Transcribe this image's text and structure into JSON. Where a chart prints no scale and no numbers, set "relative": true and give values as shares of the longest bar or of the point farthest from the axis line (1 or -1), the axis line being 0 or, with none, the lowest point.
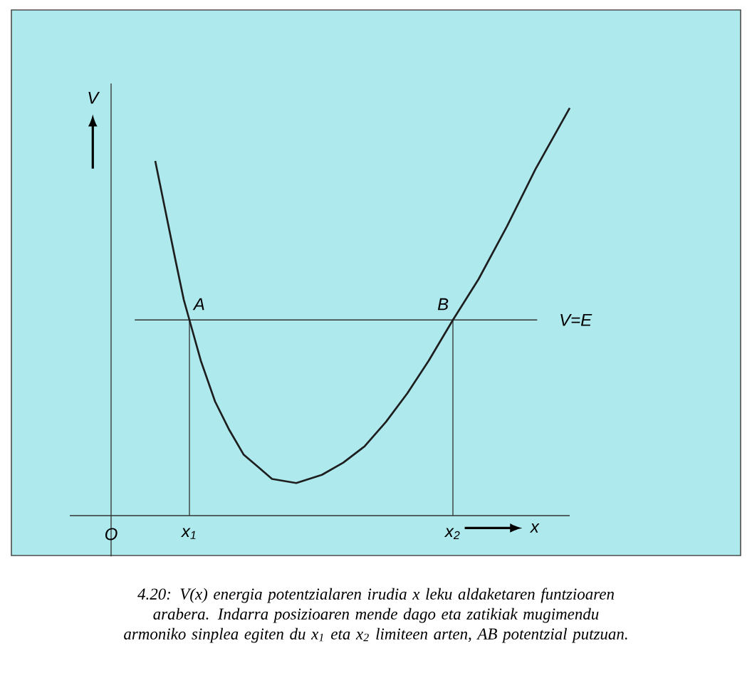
{
  "chart_data": {
    "type": "line",
    "relative": true,
    "xlabel": "x",
    "ylabel": "V",
    "x": [
      0.31,
      0.38,
      0.45,
      0.51,
      0.55,
      0.63,
      0.73,
      0.83,
      0.93,
      1.03,
      1.13,
      1.3,
      1.48,
      1.63,
      1.78,
      1.93,
      2.08,
      2.23,
      2.4,
      2.58,
      2.78,
      2.98,
      3.22
    ],
    "values": [
      0.87,
      0.75,
      0.63,
      0.53,
      0.48,
      0.38,
      0.28,
      0.21,
      0.15,
      0.12,
      0.09,
      0.08,
      0.1,
      0.13,
      0.17,
      0.23,
      0.3,
      0.38,
      0.48,
      0.58,
      0.71,
      0.85,
      1.0
    ],
    "color": "#1e1e1e",
    "xlim": [
      -0.29,
      3.22
    ],
    "xticks": [
      {
        "value": 0,
        "label": "O"
      },
      {
        "value": 0.55,
        "label": "x$_{1}$"
      },
      {
        "value": 2.4,
        "label": "x$_{2}$"
      }
    ],
    "ref_lines": [
      {
        "axis": "y",
        "value": 0.48,
        "label": "V=E"
      },
      {
        "axis": "x",
        "value": 0.55
      },
      {
        "axis": "x",
        "value": 2.4
      }
    ],
    "annotations": [
      {
        "text": "A",
        "x": 0.55,
        "y": 0.48
      },
      {
        "text": "B",
        "x": 2.4,
        "y": 0.48
      },
      "4.20: V(x) energia potentzialaren irudia x leku aldaketaren funtzioaren arabera. Indarra posizioaren mende dago eta zatikiak mugimendu armoniko sinplea egiten du x$_{1}$ eta x$_{2}$ limiteen arten, AB potentzial putzuan."
    ],
    "marker": "none",
    "line_style": "solid"
  }
}
